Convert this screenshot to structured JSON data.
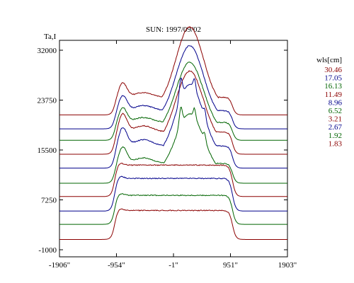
{
  "chart_data": {
    "type": "line",
    "title": "SUN: 1997/09/02",
    "ylabel": "Ta,I",
    "xlabel": "",
    "xlim": [
      -1906,
      1903
    ],
    "ylim": [
      -1000,
      34000
    ],
    "xticks": [
      -1906,
      -954,
      -1,
      951,
      1903
    ],
    "xtick_labels": [
      "-1906\"",
      "-954\"",
      "-1\"",
      "951\"",
      "1903\""
    ],
    "yticks": [
      -1000,
      7250,
      15500,
      23750,
      32000
    ],
    "ytick_labels": [
      "-1000",
      "7250",
      "15500",
      "23750",
      "32000"
    ],
    "grid": false,
    "legend_title": "wls[cm]",
    "legend_position": "right",
    "series": [
      {
        "name": "30.46",
        "color": "#8b0000",
        "baseline": 21300,
        "peak": 33200,
        "shoulder": 26600,
        "spike": 0
      },
      {
        "name": "17.05",
        "color": "#00008b",
        "baseline": 19000,
        "peak": 30000,
        "shoulder": 24500,
        "spike": 0
      },
      {
        "name": "16.13",
        "color": "#006400",
        "baseline": 17100,
        "peak": 27300,
        "shoulder": 22500,
        "spike": 0
      },
      {
        "name": "11.49",
        "color": "#8b0000",
        "baseline": 14800,
        "peak": 25200,
        "shoulder": 21500,
        "spike": 0
      },
      {
        "name": "8.96",
        "color": "#00008b",
        "baseline": 12500,
        "peak": 23000,
        "shoulder": 19200,
        "spike": 1
      },
      {
        "name": "6.52",
        "color": "#006400",
        "baseline": 10000,
        "peak": 18500,
        "shoulder": 16000,
        "spike": 1
      },
      {
        "name": "3.21",
        "color": "#8b0000",
        "baseline": 7800,
        "peak": 13500,
        "shoulder": 13000,
        "spike": 0
      },
      {
        "name": "2.67",
        "color": "#00008b",
        "baseline": 5400,
        "peak": 10800,
        "shoulder": 10800,
        "spike": 0
      },
      {
        "name": "1.92",
        "color": "#006400",
        "baseline": 3200,
        "peak": 8000,
        "shoulder": 8000,
        "spike": 0
      },
      {
        "name": "1.83",
        "color": "#8b0000",
        "baseline": 700,
        "peak": 5500,
        "shoulder": 5500,
        "spike": 0
      }
    ]
  }
}
